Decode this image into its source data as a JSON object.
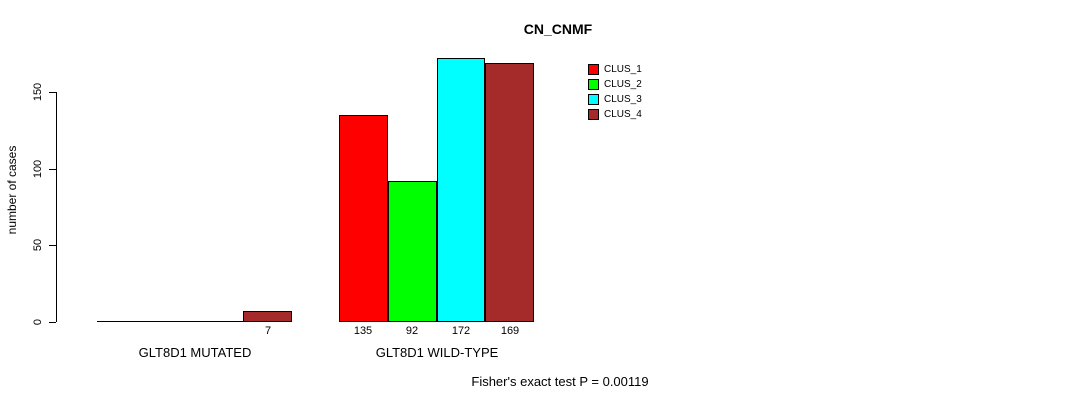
{
  "chart_data": {
    "type": "bar",
    "title": "CN_CNMF",
    "ylabel": "number of cases",
    "xlabel": "",
    "categories": [
      "GLT8D1 MUTATED",
      "GLT8D1 WILD-TYPE"
    ],
    "series": [
      {
        "name": "CLUS_1",
        "color": "#ff0000",
        "values": [
          0,
          135
        ]
      },
      {
        "name": "CLUS_2",
        "color": "#00ff00",
        "values": [
          0,
          92
        ]
      },
      {
        "name": "CLUS_3",
        "color": "#00ffff",
        "values": [
          0,
          172
        ]
      },
      {
        "name": "CLUS_4",
        "color": "#a52a2a",
        "values": [
          7,
          169
        ]
      }
    ],
    "bar_value_labels": [
      [
        "",
        "",
        "",
        "7"
      ],
      [
        "135",
        "92",
        "172",
        "169"
      ]
    ],
    "yticks": [
      0,
      50,
      100,
      150
    ],
    "ylim": [
      0,
      150
    ],
    "grid": false,
    "legend_position": "top-right",
    "annotation": "Fisher's exact test P = 0.00119"
  }
}
